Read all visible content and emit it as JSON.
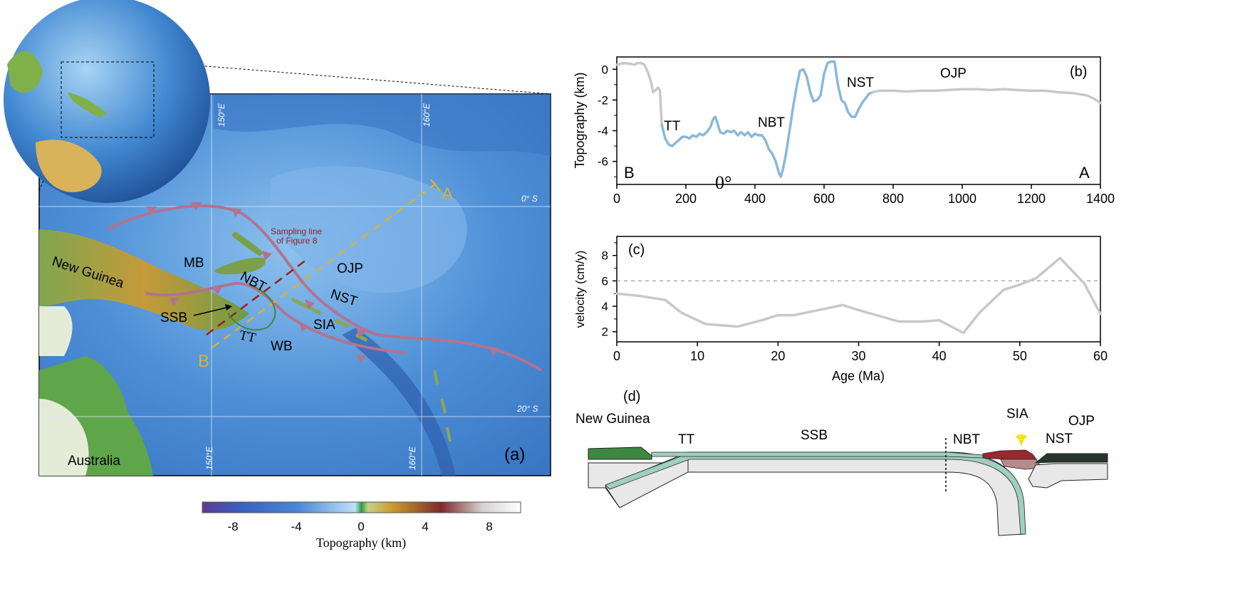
{
  "panel_a": {
    "panel_label": "(a)",
    "regions": {
      "mb": "MB",
      "new_guinea": "New Guinea",
      "nbt": "NBT",
      "ojp": "OJP",
      "nst": "NST",
      "ssb": "SSB",
      "sia": "SIA",
      "tt": "TT",
      "wb": "WB",
      "australia": "Australia"
    },
    "sampling_line_1": "Sampling line",
    "sampling_line_2": "of Figure 8",
    "point_a": "A",
    "point_b": "B",
    "lon_150_top": "150°E",
    "lon_160_top": "160°E",
    "lon_150_bottom": "150°E",
    "lon_160_bottom": "160°E",
    "lat_0": "0° S",
    "lat_20": "20° S",
    "colors": {
      "trench": "#b27390",
      "profile_ab": "#d4b23a",
      "sampling_line": "#9a1e1e"
    }
  },
  "colorbar": {
    "label": "Topography (km)",
    "ticks": [
      "-8",
      "-4",
      "0",
      "4",
      "8"
    ],
    "range": [
      -10,
      10
    ]
  },
  "chart_data": [
    {
      "type": "line",
      "panel_label": "(b)",
      "ylabel": "Topography (km)",
      "xlim": [
        0,
        1400
      ],
      "ylim": [
        -7.5,
        0.8
      ],
      "xticks": [
        "0",
        "200",
        "400",
        "600",
        "800",
        "1000",
        "1200",
        "1400"
      ],
      "yticks": [
        "0",
        "-2",
        "-4",
        "-6"
      ],
      "corner_left": "B",
      "corner_right": "A",
      "stray_label": "0°",
      "annotations": [
        "TT",
        "NBT",
        "NST",
        "OJP"
      ],
      "series": [
        {
          "color": "#c8c8c8",
          "x": [
            0,
            20,
            40,
            50,
            60,
            70,
            80,
            90,
            100,
            105,
            110,
            120,
            125,
            130
          ],
          "y": [
            0.3,
            0.4,
            0.35,
            0.3,
            0.4,
            0.4,
            0.3,
            -0.2,
            -0.9,
            -1.5,
            -1.4,
            -1.2,
            -1.4,
            -3.6
          ]
        },
        {
          "color": "#8ab8dc",
          "x": [
            130,
            140,
            150,
            160,
            170,
            180,
            190,
            200,
            210,
            220,
            230,
            240,
            250,
            260,
            270,
            280,
            285,
            290,
            295,
            300,
            310,
            320,
            330,
            340,
            350,
            360,
            370,
            380,
            390,
            400,
            410,
            420,
            430,
            440,
            450,
            460,
            470,
            475,
            480,
            490,
            500,
            510,
            520,
            530,
            540,
            550,
            560,
            570,
            580,
            590,
            600,
            610,
            620,
            630,
            640,
            650,
            660,
            670,
            680,
            690,
            700,
            710,
            720,
            730,
            740
          ],
          "y": [
            -3.6,
            -4.5,
            -4.9,
            -5.0,
            -4.8,
            -4.6,
            -4.4,
            -4.4,
            -4.5,
            -4.3,
            -4.4,
            -4.2,
            -4.3,
            -4.1,
            -3.8,
            -3.2,
            -3.1,
            -3.4,
            -3.8,
            -4.1,
            -4.2,
            -4.0,
            -4.1,
            -4.0,
            -4.3,
            -4.1,
            -4.3,
            -4.1,
            -4.4,
            -4.2,
            -4.3,
            -4.3,
            -4.6,
            -5.2,
            -5.5,
            -6.0,
            -6.8,
            -7.0,
            -6.6,
            -5.5,
            -4.0,
            -2.5,
            -1.2,
            -0.1,
            0.0,
            -0.5,
            -1.5,
            -2.1,
            -2.0,
            -1.7,
            -0.3,
            0.4,
            0.5,
            0.5,
            -1.0,
            -2.0,
            -2.2,
            -2.8,
            -3.1,
            -3.1,
            -2.6,
            -2.2,
            -1.9,
            -1.6,
            -1.5
          ]
        },
        {
          "color": "#c8c8c8",
          "x": [
            740,
            760,
            800,
            840,
            880,
            920,
            960,
            1000,
            1040,
            1080,
            1120,
            1160,
            1200,
            1240,
            1280,
            1320,
            1360,
            1380,
            1400
          ],
          "y": [
            -1.5,
            -1.4,
            -1.4,
            -1.45,
            -1.4,
            -1.4,
            -1.35,
            -1.3,
            -1.3,
            -1.35,
            -1.3,
            -1.35,
            -1.4,
            -1.4,
            -1.5,
            -1.55,
            -1.7,
            -1.9,
            -2.2
          ]
        }
      ]
    },
    {
      "type": "line",
      "panel_label": "(c)",
      "xlabel": "Age (Ma)",
      "ylabel": "velocity (cm/y)",
      "xlim": [
        0,
        60
      ],
      "ylim": [
        1.2,
        9.5
      ],
      "xticks": [
        "0",
        "10",
        "20",
        "30",
        "40",
        "50",
        "60"
      ],
      "yticks": [
        "2",
        "4",
        "6",
        "8"
      ],
      "reference_line": 6,
      "series": [
        {
          "color": "#c8c8c8",
          "x": [
            0,
            3,
            6,
            8,
            11,
            15,
            18,
            20,
            22,
            25,
            28,
            30,
            35,
            38,
            40,
            43,
            45,
            48,
            50,
            52,
            55,
            58,
            60
          ],
          "y": [
            5.0,
            4.8,
            4.5,
            3.5,
            2.6,
            2.4,
            2.9,
            3.3,
            3.3,
            3.7,
            4.1,
            3.7,
            2.8,
            2.8,
            2.9,
            1.9,
            3.5,
            5.3,
            5.7,
            6.2,
            7.8,
            5.8,
            3.4
          ]
        }
      ]
    }
  ],
  "panel_d": {
    "panel_label": "(d)",
    "labels": {
      "new_guinea": "New Guinea",
      "tt": "TT",
      "ssb": "SSB",
      "nbt": "NBT",
      "sia": "SIA",
      "nst": "NST",
      "ojp": "OJP"
    },
    "colors": {
      "new_guinea": "#3e8741",
      "slab_crust": "#9fcfc0",
      "arc": "#9b2730",
      "ojp": "#28352b",
      "volcano": "#f2e21a"
    }
  }
}
